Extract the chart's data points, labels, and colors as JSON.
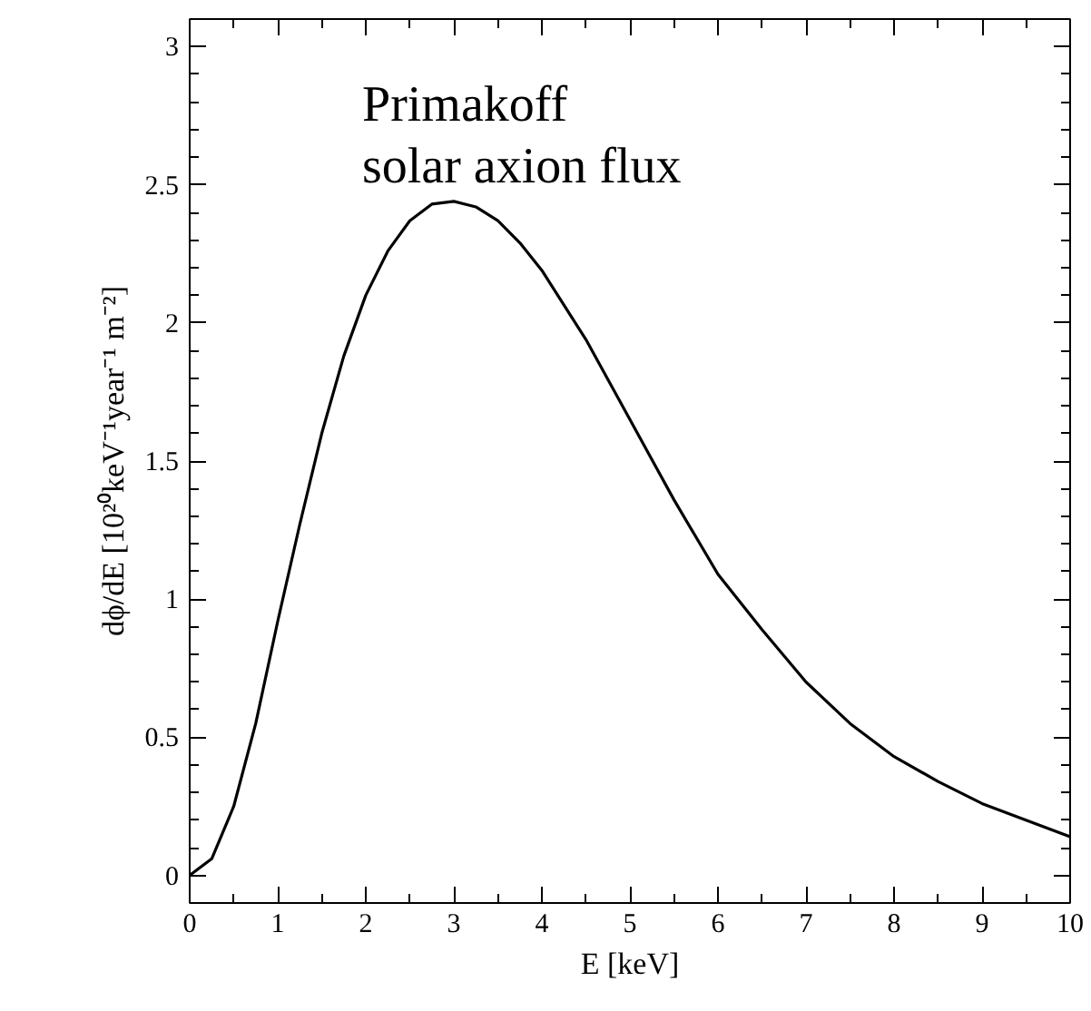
{
  "chart_data": {
    "type": "line",
    "xlabel": "E [keV]",
    "ylabel": "dϕ/dE [10²⁰keV⁻¹year⁻¹ m⁻²]",
    "annotations": [
      "Primakoff\nsolar axion flux"
    ],
    "x": [
      0,
      0.25,
      0.5,
      0.75,
      1,
      1.25,
      1.5,
      1.75,
      2,
      2.25,
      2.5,
      2.75,
      3,
      3.25,
      3.5,
      3.75,
      4,
      4.5,
      5,
      5.5,
      6,
      6.5,
      7,
      7.5,
      8,
      8.5,
      9,
      9.5,
      10
    ],
    "series": [
      {
        "color": "#000000",
        "values": [
          0,
          0.06,
          0.25,
          0.55,
          0.92,
          1.27,
          1.6,
          1.88,
          2.1,
          2.26,
          2.37,
          2.43,
          2.44,
          2.42,
          2.37,
          2.29,
          2.19,
          1.94,
          1.65,
          1.36,
          1.09,
          0.89,
          0.7,
          0.55,
          0.43,
          0.34,
          0.26,
          0.2,
          0.14
        ]
      }
    ],
    "xlim": [
      0,
      10
    ],
    "ylim": [
      -0.1,
      3.1
    ],
    "xticks": [
      0,
      {
        "value": 0.5,
        "label": null
      },
      1,
      {
        "value": 1.5,
        "label": null
      },
      2,
      {
        "value": 2.5,
        "label": null
      },
      3,
      {
        "value": 3.5,
        "label": null
      },
      4,
      {
        "value": 4.5,
        "label": null
      },
      5,
      {
        "value": 5.5,
        "label": null
      },
      6,
      {
        "value": 6.5,
        "label": null
      },
      7,
      {
        "value": 7.5,
        "label": null
      },
      8,
      {
        "value": 8.5,
        "label": null
      },
      9,
      {
        "value": 9.5,
        "label": null
      },
      10
    ],
    "yticks": [
      0,
      {
        "value": 0.1,
        "label": null
      },
      {
        "value": 0.2,
        "label": null
      },
      {
        "value": 0.3,
        "label": null
      },
      {
        "value": 0.4,
        "label": null
      },
      0.5,
      {
        "value": 0.6,
        "label": null
      },
      {
        "value": 0.7,
        "label": null
      },
      {
        "value": 0.8,
        "label": null
      },
      {
        "value": 0.9,
        "label": null
      },
      1,
      {
        "value": 1.1,
        "label": null
      },
      {
        "value": 1.2,
        "label": null
      },
      {
        "value": 1.3,
        "label": null
      },
      {
        "value": 1.4,
        "label": null
      },
      1.5,
      {
        "value": 1.6,
        "label": null
      },
      {
        "value": 1.7,
        "label": null
      },
      {
        "value": 1.8,
        "label": null
      },
      {
        "value": 1.9,
        "label": null
      },
      2,
      {
        "value": 2.1,
        "label": null
      },
      {
        "value": 2.2,
        "label": null
      },
      {
        "value": 2.3,
        "label": null
      },
      {
        "value": 2.4,
        "label": null
      },
      2.5,
      {
        "value": 2.6,
        "label": null
      },
      {
        "value": 2.7,
        "label": null
      },
      {
        "value": 2.8,
        "label": null
      },
      {
        "value": 2.9,
        "label": null
      },
      3
    ],
    "grid": false,
    "marker": "none",
    "line_style": "solid"
  }
}
